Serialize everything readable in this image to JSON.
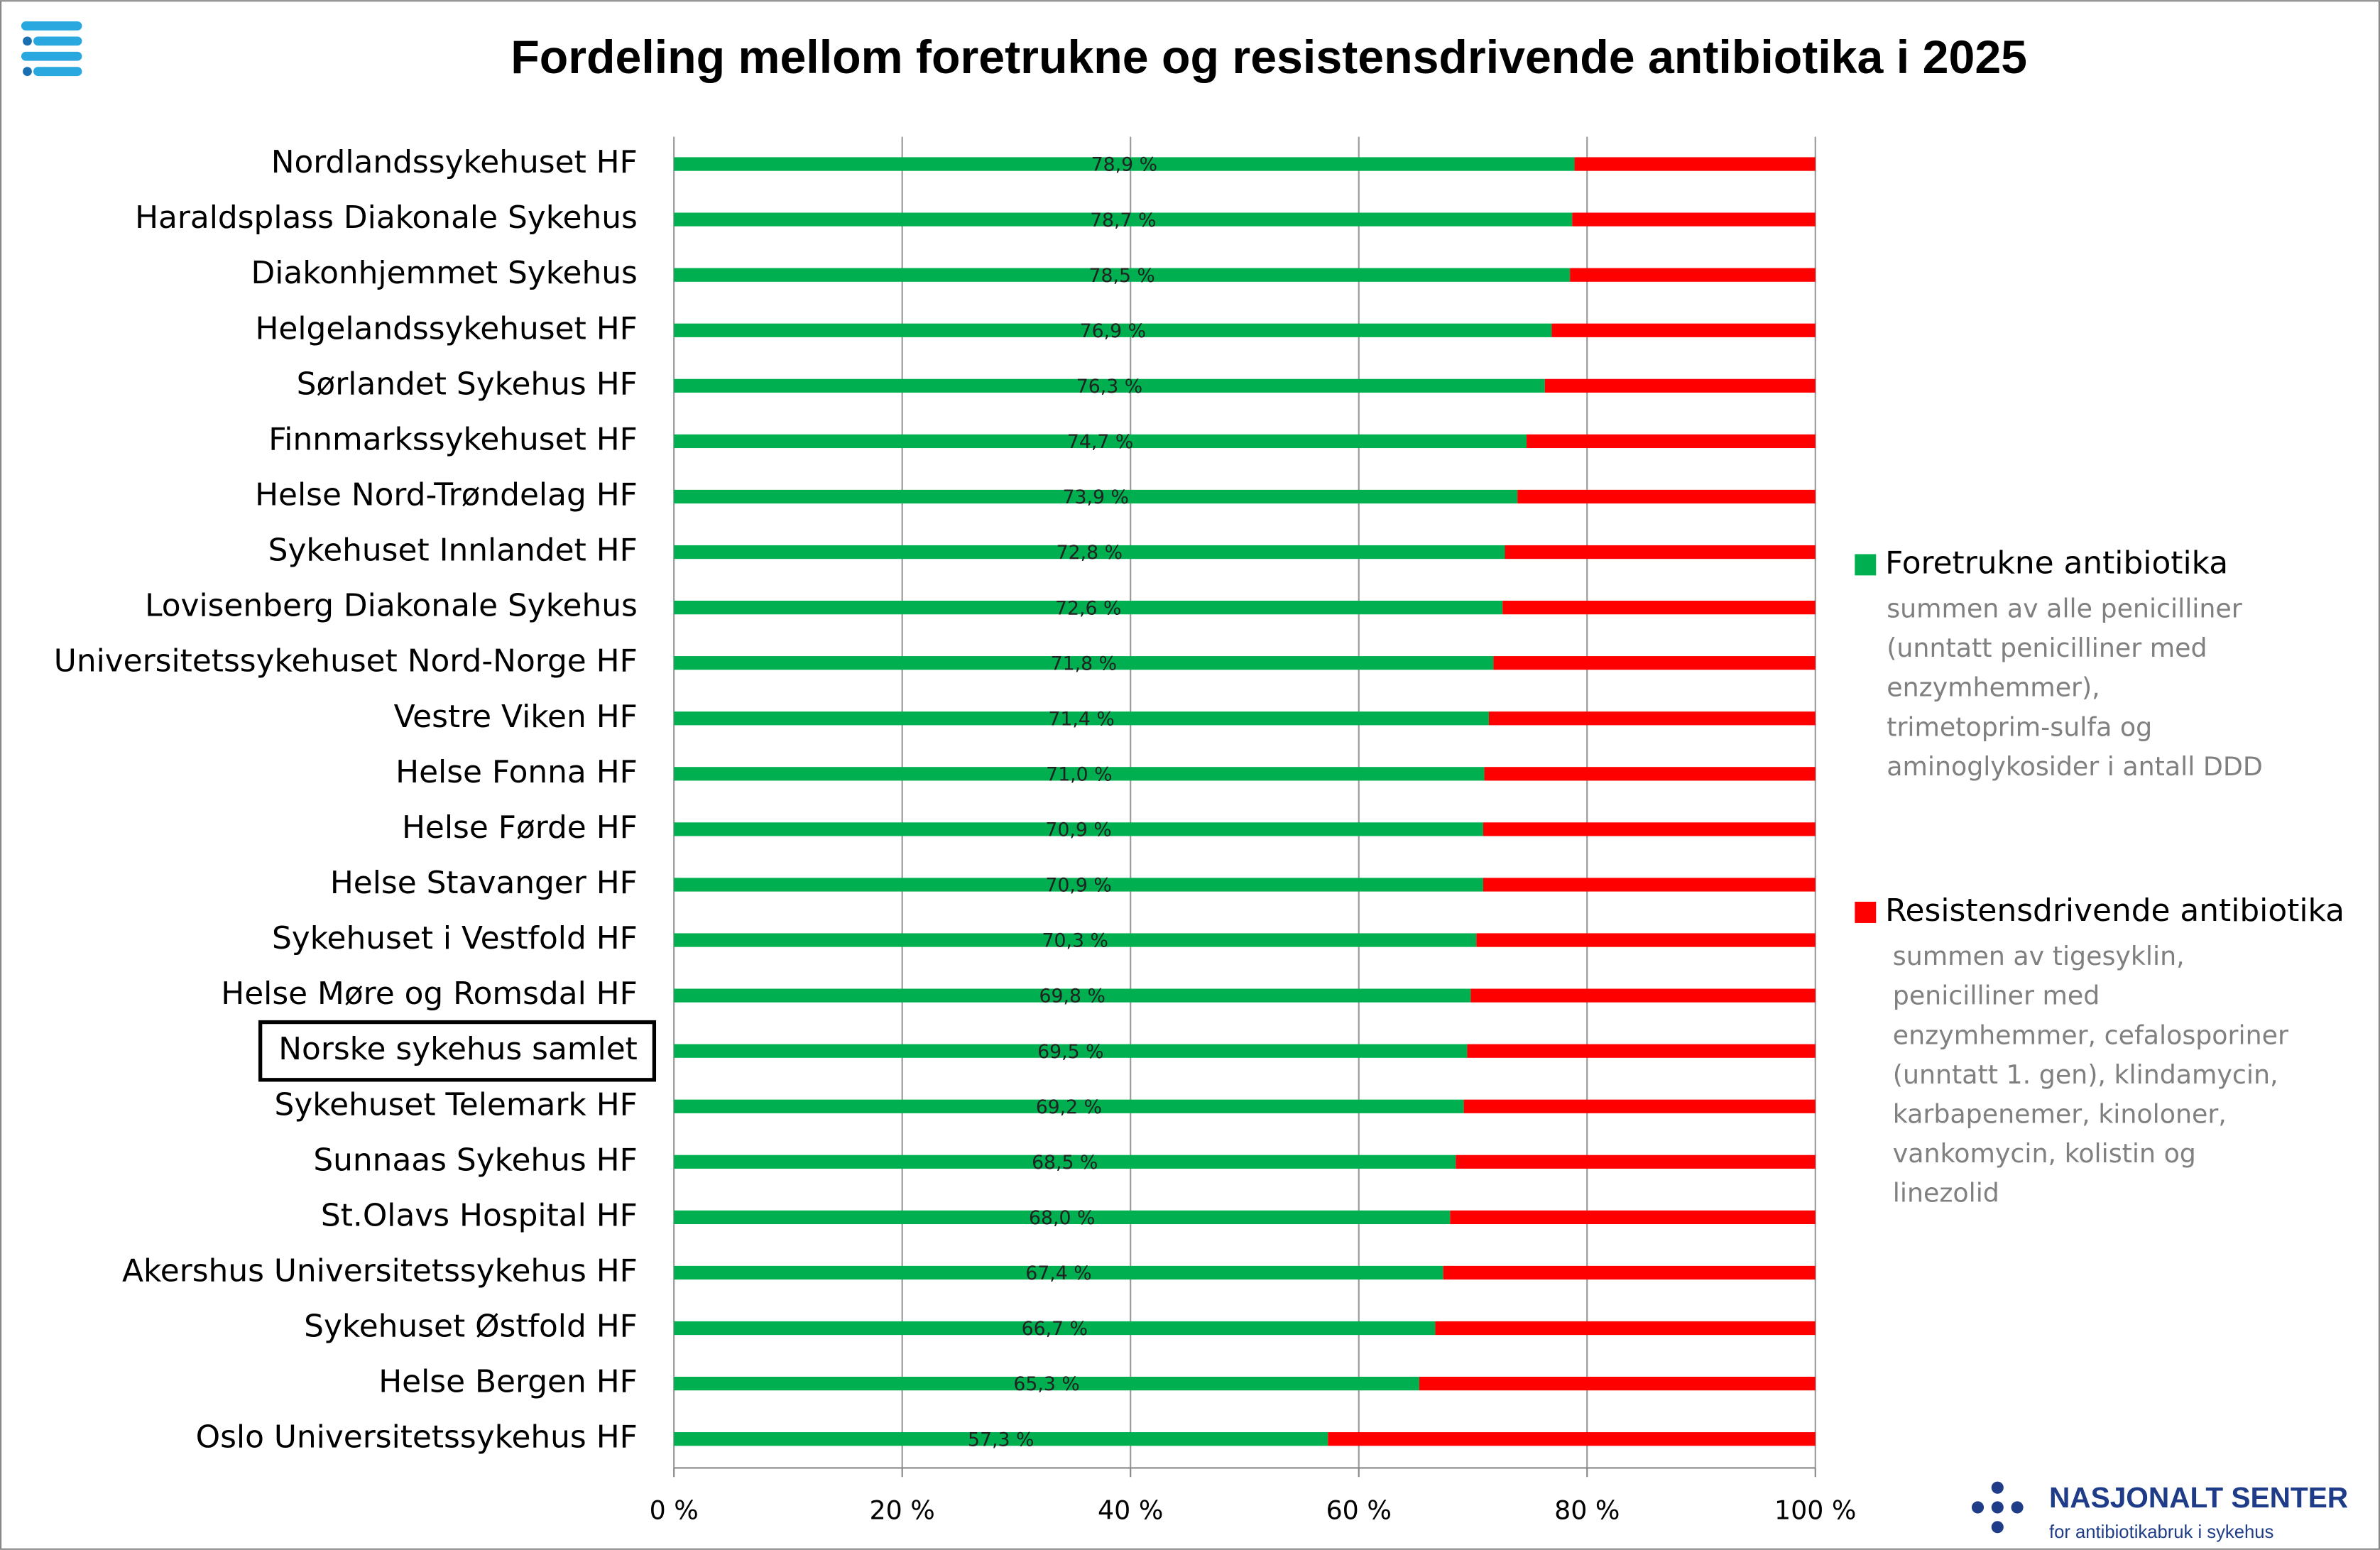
{
  "chart_data": {
    "type": "stacked-bar-horizontal",
    "title": "Fordeling mellom foretrukne og resistensdrivende antibiotika i 2025",
    "categories": [
      "Nordlandssykehuset HF",
      "Haraldsplass Diakonale Sykehus",
      "Diakonhjemmet Sykehus",
      "Helgelandssykehuset HF",
      "Sørlandet Sykehus HF",
      "Finnmarkssykehuset HF",
      "Helse Nord-Trøndelag HF",
      "Sykehuset Innlandet HF",
      "Lovisenberg Diakonale Sykehus",
      "Universitetssykehuset Nord-Norge HF",
      "Vestre Viken HF",
      "Helse Fonna HF",
      "Helse Førde HF",
      "Helse Stavanger HF",
      "Sykehuset i Vestfold HF",
      "Helse Møre og Romsdal HF",
      "Norske sykehus samlet",
      "Sykehuset Telemark HF",
      "Sunnaas Sykehus HF",
      "St.Olavs Hospital HF",
      "Akershus Universitetssykehus HF",
      "Sykehuset Østfold HF",
      "Helse Bergen HF",
      "Oslo Universitetssykehus HF"
    ],
    "highlight_index": 16,
    "series": [
      {
        "name": "Foretrukne antibiotika",
        "color": "#00b050",
        "description": [
          "summen av alle penicilliner",
          "(unntatt penicilliner med",
          "enzymhemmer),",
          "trimetoprim-sulfa og",
          "aminoglykosider i antall DDD"
        ],
        "values": [
          78.9,
          78.7,
          78.5,
          76.9,
          76.3,
          74.7,
          73.9,
          72.8,
          72.6,
          71.8,
          71.4,
          71.0,
          70.9,
          70.9,
          70.3,
          69.8,
          69.5,
          69.2,
          68.5,
          68.0,
          67.4,
          66.7,
          65.3,
          57.3
        ],
        "value_labels": [
          "78,9 %",
          "78,7 %",
          "78,5 %",
          "76,9 %",
          "76,3 %",
          "74,7 %",
          "73,9 %",
          "72,8 %",
          "72,6 %",
          "71,8 %",
          "71,4 %",
          "71,0 %",
          "70,9 %",
          "70,9 %",
          "70,3 %",
          "69,8 %",
          "69,5 %",
          "69,2 %",
          "68,5 %",
          "68,0 %",
          "67,4 %",
          "66,7 %",
          "65,3 %",
          "57,3 %"
        ]
      },
      {
        "name": "Resistensdrivende antibiotika",
        "color": "#ff0000",
        "description": [
          "summen av tigesyklin,",
          "penicilliner med",
          "enzymhemmer, cefalosporiner",
          "(unntatt 1. gen), klindamycin,",
          "karbapenemer, kinoloner,",
          "vankomycin, kolistin og",
          "linezolid"
        ],
        "values": [
          21.1,
          21.3,
          21.5,
          23.1,
          23.7,
          25.3,
          26.1,
          27.2,
          27.4,
          28.2,
          28.6,
          29.0,
          29.1,
          29.1,
          29.7,
          30.2,
          30.5,
          30.8,
          31.5,
          32.0,
          32.6,
          33.3,
          34.7,
          42.7
        ]
      }
    ],
    "xlim": [
      0,
      100
    ],
    "xticks": [
      {
        "value": 0,
        "label": "0 %"
      },
      {
        "value": 20,
        "label": "20 %"
      },
      {
        "value": 40,
        "label": "40 %"
      },
      {
        "value": 60,
        "label": "60 %"
      },
      {
        "value": 80,
        "label": "80 %"
      },
      {
        "value": 100,
        "label": "100 %"
      }
    ],
    "grid": true
  },
  "logo": {
    "title": "NASJONALT SENTER",
    "subtitle": "for antibiotikabruk i sykehus"
  }
}
